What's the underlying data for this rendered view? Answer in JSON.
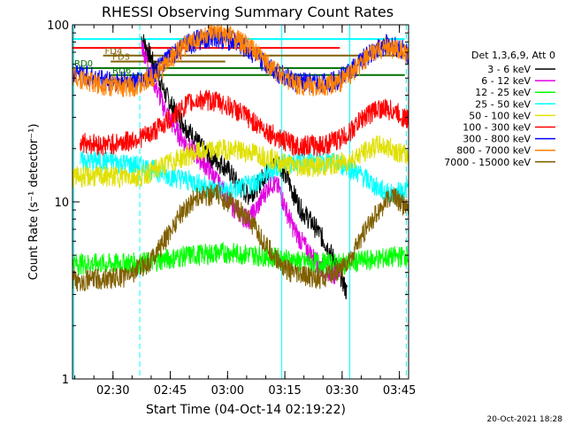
{
  "chart_data": {
    "type": "line",
    "title": "RHESSI Observing Summary Count Rates",
    "xlabel": "Start Time (04-Oct-14 02:19:22)",
    "ylabel": "Count Rate (s⁻¹ detector⁻¹)",
    "yscale": "log",
    "ylim": [
      1,
      100
    ],
    "yticks": [
      {
        "value": 1,
        "label": "1"
      },
      {
        "value": 10,
        "label": "10"
      },
      {
        "value": 100,
        "label": "100"
      }
    ],
    "xlim_minutes": [
      0,
      88
    ],
    "xticks": [
      {
        "minutes": 10.6,
        "label": "02:30"
      },
      {
        "minutes": 25.6,
        "label": "02:45"
      },
      {
        "minutes": 40.6,
        "label": "03:00"
      },
      {
        "minutes": 55.6,
        "label": "03:15"
      },
      {
        "minutes": 70.6,
        "label": "03:30"
      },
      {
        "minutes": 85.6,
        "label": "03:45"
      }
    ],
    "legend_position": "right",
    "legend_title": "Det 1,3,6,9, Att 0",
    "series": [
      {
        "name": "3 - 6 keV",
        "color": "#000000",
        "points": [
          [
            18,
            85
          ],
          [
            20,
            70
          ],
          [
            22,
            55
          ],
          [
            24,
            42
          ],
          [
            26,
            35
          ],
          [
            28,
            30
          ],
          [
            30,
            26
          ],
          [
            32,
            23
          ],
          [
            34,
            20
          ],
          [
            36,
            18
          ],
          [
            38,
            17
          ],
          [
            40,
            16
          ],
          [
            42,
            14
          ],
          [
            44,
            12
          ],
          [
            46,
            11
          ],
          [
            48,
            12
          ],
          [
            50,
            14
          ],
          [
            52,
            16
          ],
          [
            54,
            17
          ],
          [
            56,
            14
          ],
          [
            58,
            11
          ],
          [
            60,
            9
          ],
          [
            62,
            8
          ],
          [
            64,
            7
          ],
          [
            66,
            6
          ],
          [
            68,
            5
          ],
          [
            70,
            4
          ],
          [
            72,
            3
          ]
        ]
      },
      {
        "name": "6 - 12 keV",
        "color": "#e000e0",
        "points": [
          [
            18,
            80
          ],
          [
            20,
            58
          ],
          [
            22,
            44
          ],
          [
            24,
            34
          ],
          [
            26,
            28
          ],
          [
            28,
            24
          ],
          [
            30,
            21
          ],
          [
            32,
            19
          ],
          [
            34,
            17
          ],
          [
            36,
            15
          ],
          [
            38,
            13
          ],
          [
            40,
            11
          ],
          [
            42,
            9.5
          ],
          [
            44,
            8.5
          ],
          [
            46,
            8
          ],
          [
            48,
            9
          ],
          [
            50,
            11
          ],
          [
            52,
            13
          ],
          [
            54,
            12
          ],
          [
            56,
            9
          ],
          [
            58,
            7
          ],
          [
            60,
            6
          ],
          [
            62,
            5.2
          ],
          [
            64,
            4.6
          ],
          [
            66,
            4.2
          ],
          [
            68,
            4
          ],
          [
            70,
            4
          ]
        ]
      },
      {
        "name": "12 - 25 keV",
        "color": "#00ff00",
        "points": [
          [
            0,
            4.5
          ],
          [
            10,
            4.5
          ],
          [
            20,
            4.6
          ],
          [
            30,
            5
          ],
          [
            40,
            5.2
          ],
          [
            50,
            5
          ],
          [
            60,
            4.6
          ],
          [
            70,
            4.5
          ],
          [
            80,
            4.8
          ],
          [
            88,
            5
          ]
        ]
      },
      {
        "name": "25 - 50 keV",
        "color": "#00ffff",
        "points": [
          [
            2,
            17
          ],
          [
            10,
            17
          ],
          [
            18,
            16
          ],
          [
            26,
            14
          ],
          [
            32,
            13
          ],
          [
            36,
            12
          ],
          [
            40,
            11.5
          ],
          [
            44,
            12
          ],
          [
            48,
            13
          ],
          [
            54,
            16
          ],
          [
            58,
            17
          ],
          [
            66,
            17
          ],
          [
            72,
            16
          ],
          [
            76,
            14
          ],
          [
            80,
            12
          ],
          [
            84,
            11
          ],
          [
            88,
            12
          ]
        ]
      },
      {
        "name": "50 - 100 keV",
        "color": "#e0e000",
        "points": [
          [
            0,
            14
          ],
          [
            10,
            14
          ],
          [
            18,
            14
          ],
          [
            26,
            17
          ],
          [
            32,
            19
          ],
          [
            36,
            19.5
          ],
          [
            40,
            20
          ],
          [
            44,
            19.5
          ],
          [
            48,
            19
          ],
          [
            54,
            17
          ],
          [
            58,
            16
          ],
          [
            66,
            16
          ],
          [
            72,
            17
          ],
          [
            76,
            19
          ],
          [
            80,
            21
          ],
          [
            84,
            20
          ],
          [
            88,
            18
          ]
        ]
      },
      {
        "name": "100 - 300 keV",
        "color": "#ff0000",
        "points": [
          [
            2,
            22
          ],
          [
            8,
            21
          ],
          [
            14,
            22
          ],
          [
            20,
            24
          ],
          [
            26,
            30
          ],
          [
            30,
            36
          ],
          [
            34,
            38
          ],
          [
            38,
            37
          ],
          [
            42,
            34
          ],
          [
            46,
            30
          ],
          [
            50,
            26
          ],
          [
            54,
            23
          ],
          [
            58,
            21
          ],
          [
            66,
            21
          ],
          [
            72,
            24
          ],
          [
            76,
            30
          ],
          [
            80,
            34
          ],
          [
            84,
            33
          ],
          [
            88,
            29
          ]
        ]
      },
      {
        "name": "300 - 800 keV",
        "color": "#0000ff",
        "points": [
          [
            0,
            55
          ],
          [
            6,
            50
          ],
          [
            12,
            48
          ],
          [
            18,
            48
          ],
          [
            22,
            55
          ],
          [
            26,
            68
          ],
          [
            30,
            78
          ],
          [
            34,
            84
          ],
          [
            38,
            85
          ],
          [
            42,
            82
          ],
          [
            46,
            72
          ],
          [
            50,
            62
          ],
          [
            54,
            54
          ],
          [
            58,
            48
          ],
          [
            62,
            47
          ],
          [
            66,
            47
          ],
          [
            70,
            50
          ],
          [
            74,
            58
          ],
          [
            78,
            70
          ],
          [
            82,
            78
          ],
          [
            86,
            74
          ],
          [
            88,
            68
          ]
        ]
      },
      {
        "name": "800 - 7000 keV",
        "color": "#ff8000",
        "points": [
          [
            0,
            52
          ],
          [
            6,
            47
          ],
          [
            12,
            45
          ],
          [
            18,
            46
          ],
          [
            22,
            53
          ],
          [
            26,
            66
          ],
          [
            30,
            78
          ],
          [
            34,
            86
          ],
          [
            38,
            90
          ],
          [
            42,
            86
          ],
          [
            46,
            76
          ],
          [
            50,
            64
          ],
          [
            54,
            54
          ],
          [
            58,
            47
          ],
          [
            62,
            45
          ],
          [
            66,
            45
          ],
          [
            70,
            48
          ],
          [
            74,
            56
          ],
          [
            78,
            68
          ],
          [
            82,
            76
          ],
          [
            86,
            72
          ],
          [
            88,
            66
          ]
        ]
      },
      {
        "name": "7000 - 15000 keV",
        "color": "#806000",
        "points": [
          [
            0,
            3.6
          ],
          [
            8,
            3.7
          ],
          [
            14,
            3.8
          ],
          [
            20,
            4.6
          ],
          [
            24,
            6
          ],
          [
            28,
            8.5
          ],
          [
            32,
            10.5
          ],
          [
            34,
            11
          ],
          [
            38,
            11
          ],
          [
            42,
            9.8
          ],
          [
            46,
            8
          ],
          [
            50,
            6
          ],
          [
            54,
            4.6
          ],
          [
            58,
            3.9
          ],
          [
            66,
            3.7
          ],
          [
            72,
            4.5
          ],
          [
            76,
            6.5
          ],
          [
            80,
            9
          ],
          [
            84,
            11
          ],
          [
            88,
            9
          ]
        ]
      }
    ],
    "attenuator_bars": [
      {
        "label": "",
        "color": "#00ffff",
        "y": 83,
        "start": 0,
        "end": 87
      },
      {
        "label": "",
        "color": "#ff0000",
        "y": 74,
        "start": 0,
        "end": 70
      },
      {
        "label": "FD4",
        "color": "#806000",
        "y": 67,
        "start": 8,
        "end": 87
      },
      {
        "label": "FD3",
        "color": "#806000",
        "y": 62,
        "start": 10,
        "end": 40
      },
      {
        "label": "RD0",
        "color": "#007000",
        "y": 57,
        "start": 0,
        "end": 72
      },
      {
        "label": "RD6",
        "color": "#007000",
        "y": 52,
        "start": 10,
        "end": 87
      }
    ],
    "vertical_markers": [
      {
        "minutes": 0.3,
        "color": "#00ffff",
        "style": "solid"
      },
      {
        "minutes": 17.6,
        "color": "#00ffff",
        "style": "dashed"
      },
      {
        "minutes": 54.8,
        "color": "#00ffff",
        "style": "solid"
      },
      {
        "minutes": 72.6,
        "color": "#00ffff",
        "style": "solid"
      },
      {
        "minutes": 87.4,
        "color": "#00ffff",
        "style": "dashed"
      }
    ],
    "footer_date": "20-Oct-2021 18:28"
  }
}
